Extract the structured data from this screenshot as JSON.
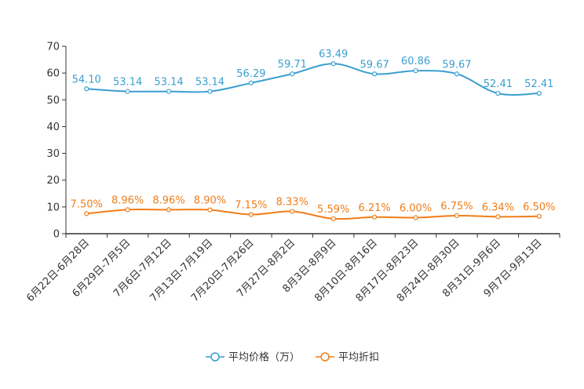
{
  "chart_data": {
    "type": "line",
    "categories": [
      "6月22日-6月28日",
      "6月29日-7月5日",
      "7月6日-7月12日",
      "7月13日-7月19日",
      "7月20日-7月26日",
      "7月27日-8月2日",
      "8月3日-8月9日",
      "8月10日-8月16日",
      "8月17日-8月23日",
      "8月24日-8月30日",
      "8月31日-9月6日",
      "9月7日-9月13日"
    ],
    "ylim": [
      0,
      70
    ],
    "yticks": [
      0,
      10,
      20,
      30,
      40,
      50,
      60,
      70
    ],
    "series": [
      {
        "name": "平均价格（万）",
        "color": "#3a9fd0",
        "values": [
          54.1,
          53.14,
          53.14,
          53.14,
          56.29,
          59.71,
          63.49,
          59.67,
          60.86,
          59.67,
          52.41,
          52.41
        ],
        "labels": [
          "54.10",
          "53.14",
          "53.14",
          "53.14",
          "56.29",
          "59.71",
          "63.49",
          "59.67",
          "60.86",
          "59.67",
          "52.41",
          "52.41"
        ]
      },
      {
        "name": "平均折扣",
        "color": "#f07d1a",
        "values": [
          7.5,
          8.96,
          8.96,
          8.9,
          7.15,
          8.33,
          5.59,
          6.21,
          6.0,
          6.75,
          6.34,
          6.5
        ],
        "labels": [
          "7.50%",
          "8.96%",
          "8.96%",
          "8.90%",
          "7.15%",
          "8.33%",
          "5.59%",
          "6.21%",
          "6.00%",
          "6.75%",
          "6.34%",
          "6.50%"
        ]
      }
    ]
  }
}
